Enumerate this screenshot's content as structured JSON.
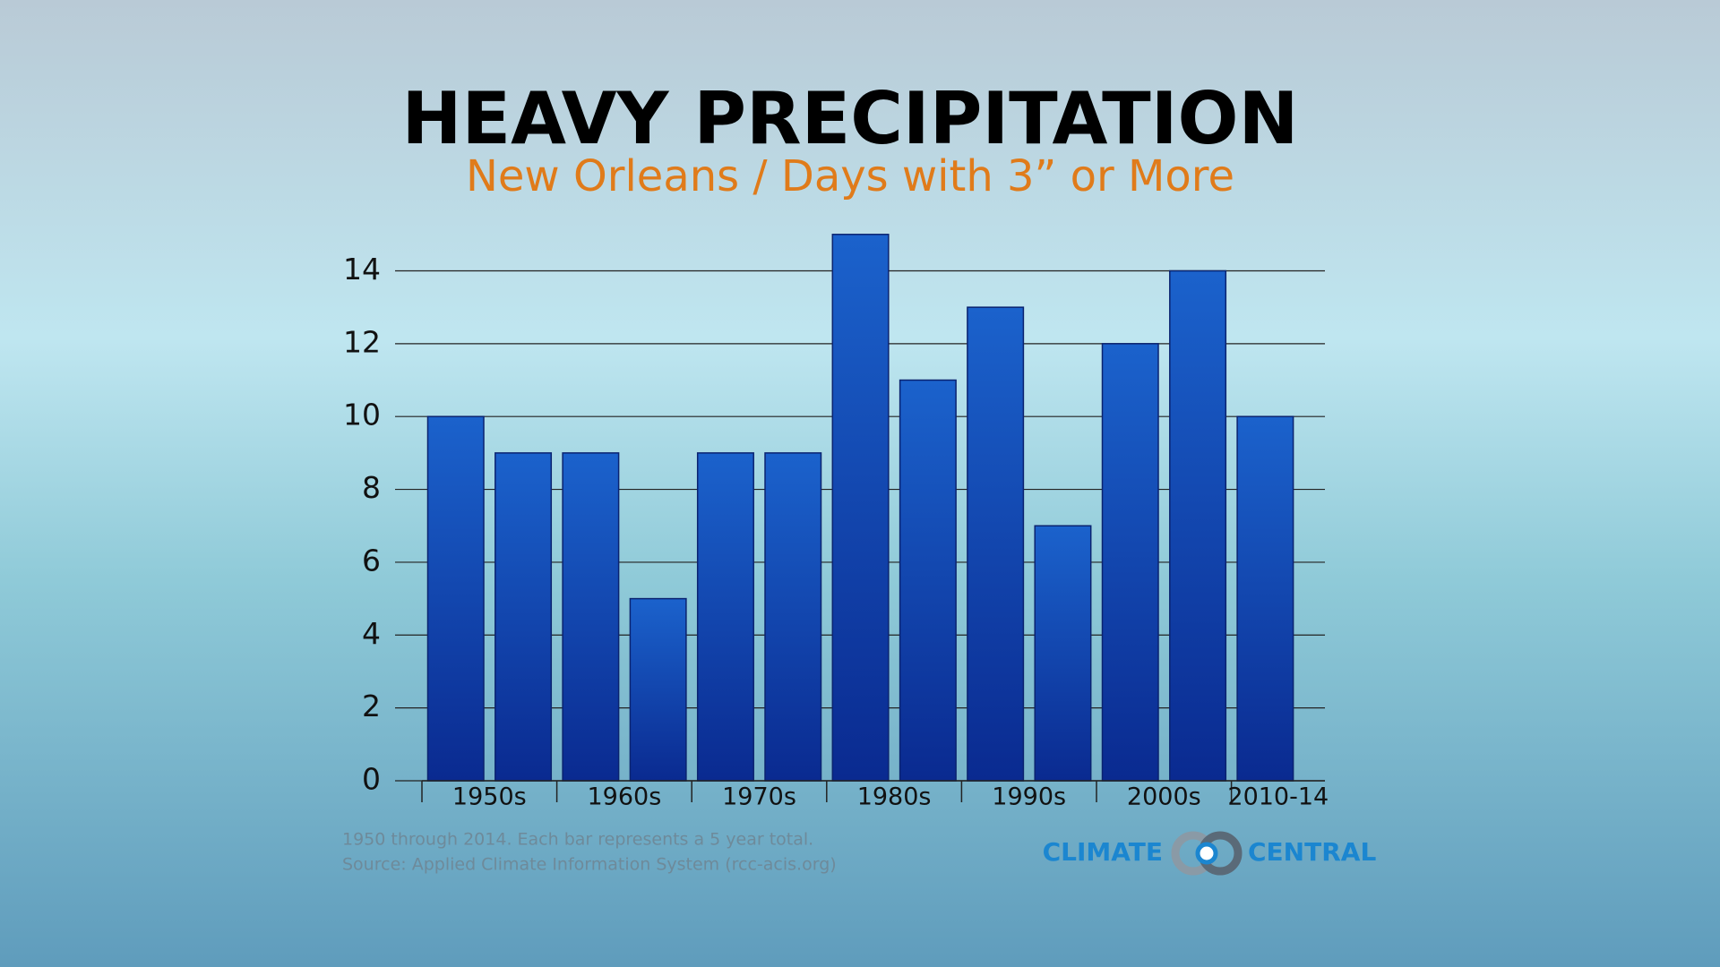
{
  "chart_data": {
    "type": "bar",
    "title": "HEAVY PRECIPITATION",
    "subtitle": "New Orleans / Days with 3” or More",
    "groups": [
      {
        "label": "1950s",
        "values": [
          10,
          9
        ]
      },
      {
        "label": "1960s",
        "values": [
          9,
          5
        ]
      },
      {
        "label": "1970s",
        "values": [
          9,
          9
        ]
      },
      {
        "label": "1980s",
        "values": [
          15,
          11
        ]
      },
      {
        "label": "1990s",
        "values": [
          13,
          7
        ]
      },
      {
        "label": "2000s",
        "values": [
          12,
          14
        ]
      },
      {
        "label": "2010-14",
        "values": [
          10
        ]
      }
    ],
    "color": "#1650c0",
    "ylim": [
      0,
      15
    ],
    "yticks": [
      0,
      2,
      4,
      6,
      8,
      10,
      12,
      14
    ],
    "grid": true,
    "notes": [
      "1950 through 2014. Each bar represents a 5 year total.",
      "Source: Applied Climate Information System (rcc-acis.org)"
    ],
    "logo": [
      "CLIMATE",
      "CENTRAL"
    ]
  }
}
